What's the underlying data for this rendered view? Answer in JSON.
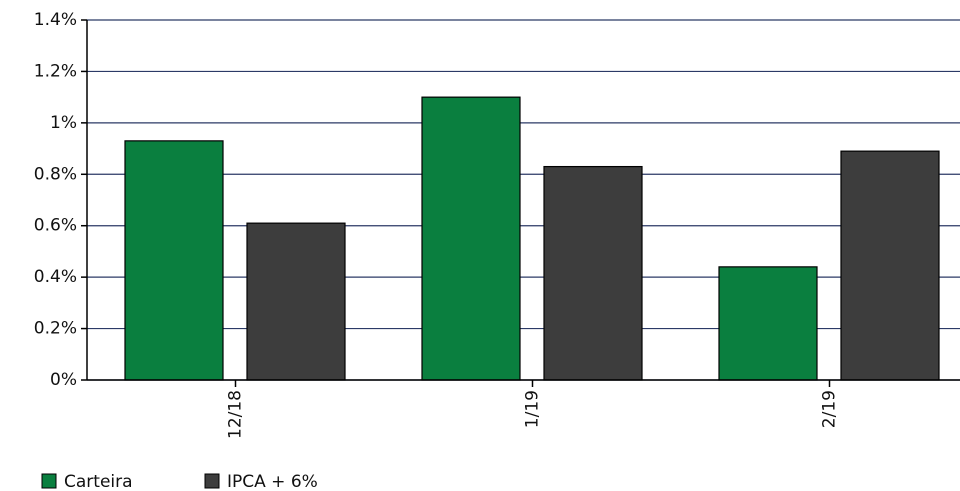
{
  "chart_data": {
    "type": "bar",
    "categories": [
      "12/18",
      "1/19",
      "2/19"
    ],
    "series": [
      {
        "name": "Carteira",
        "color": "#0a7f3f",
        "values": [
          0.93,
          1.1,
          0.44
        ]
      },
      {
        "name": "IPCA + 6%",
        "color": "#3d3d3d",
        "values": [
          0.61,
          0.83,
          0.89
        ]
      }
    ],
    "ylim": [
      0,
      1.4
    ],
    "yticks": [
      {
        "value": 0,
        "label": "0%"
      },
      {
        "value": 0.2,
        "label": "0.2%"
      },
      {
        "value": 0.4,
        "label": "0.4%"
      },
      {
        "value": 0.6,
        "label": "0.6%"
      },
      {
        "value": 0.8,
        "label": "0.8%"
      },
      {
        "value": 1,
        "label": "1%"
      },
      {
        "value": 1.2,
        "label": "1.2%"
      },
      {
        "value": 1.4,
        "label": "1.4%"
      }
    ],
    "grid": true,
    "legend": "bottom-left"
  }
}
